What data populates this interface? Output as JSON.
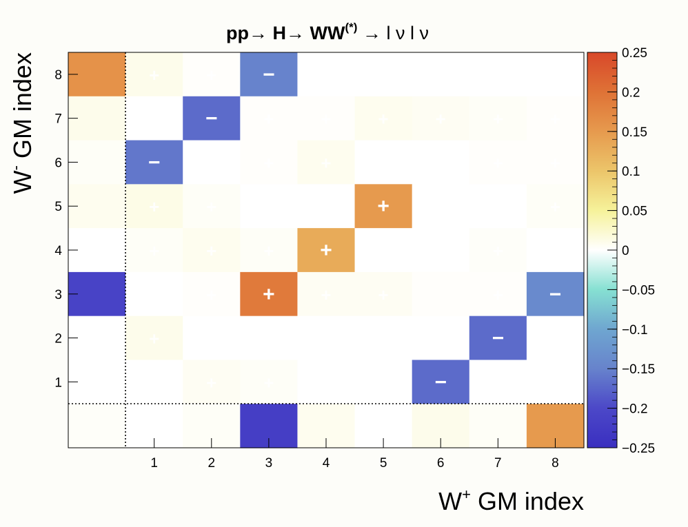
{
  "chart_data": {
    "type": "heatmap",
    "title": "pp→ H→ WW(*) → l ν l ν",
    "title_parts": {
      "pp": "pp",
      "arrow1": "→ ",
      "H": "H",
      "arrow2": "→ ",
      "WW": "WW",
      "WW_sup": "(*)",
      "tail": " → l ν l ν"
    },
    "xlabel": "W+ GM index",
    "xlabel_parts": {
      "base": "W",
      "sup": "+",
      "rest": " GM index"
    },
    "ylabel": "W- GM index",
    "ylabel_parts": {
      "base": "W",
      "sup": "-",
      "rest": " GM index"
    },
    "x_bins": [
      "",
      "1",
      "2",
      "3",
      "4",
      "5",
      "6",
      "7",
      "8"
    ],
    "y_bins": [
      "",
      "1",
      "2",
      "3",
      "4",
      "5",
      "6",
      "7",
      "8"
    ],
    "x_tick_labels": [
      "1",
      "2",
      "3",
      "4",
      "5",
      "6",
      "7",
      "8"
    ],
    "y_tick_labels": [
      "1",
      "2",
      "3",
      "4",
      "5",
      "6",
      "7",
      "8"
    ],
    "zlim": [
      -0.25,
      0.25
    ],
    "colorbar_ticks": [
      "0.25",
      "0.2",
      "0.15",
      "0.1",
      "0.05",
      "0",
      "−0.05",
      "−0.1",
      "−0.15",
      "−0.2",
      "−0.25"
    ],
    "colorbar_tick_values": [
      0.25,
      0.2,
      0.15,
      0.1,
      0.05,
      0,
      -0.05,
      -0.1,
      -0.15,
      -0.2,
      -0.25
    ],
    "rows_top_to_bottom": [
      {
        "y": "8",
        "values": [
          0.16,
          0.01,
          0.002,
          -0.15,
          0,
          0,
          0,
          0,
          0
        ]
      },
      {
        "y": "7",
        "values": [
          0.01,
          0,
          -0.17,
          0.002,
          0.002,
          0.008,
          0.006,
          0.004,
          0.002
        ]
      },
      {
        "y": "6",
        "values": [
          0.004,
          -0.16,
          0,
          0.002,
          0.008,
          0,
          0,
          0.002,
          0.002
        ]
      },
      {
        "y": "5",
        "values": [
          0.008,
          0.012,
          0.004,
          0,
          0,
          0.15,
          0,
          0,
          0.004
        ]
      },
      {
        "y": "4",
        "values": [
          0,
          0.004,
          0.008,
          0.004,
          0.13,
          0,
          0,
          0.003,
          0
        ]
      },
      {
        "y": "3",
        "values": [
          -0.21,
          0,
          0.002,
          0.19,
          0.006,
          0.006,
          0.002,
          0.002,
          -0.14
        ]
      },
      {
        "y": "2",
        "values": [
          0,
          0.01,
          0,
          0,
          0,
          0,
          0,
          -0.17,
          0
        ]
      },
      {
        "y": "1",
        "values": [
          0,
          0,
          0.006,
          0.004,
          0,
          0,
          -0.17,
          0,
          0
        ]
      },
      {
        "y": "",
        "values": [
          0.003,
          0,
          0.004,
          -0.22,
          0.008,
          0,
          0.01,
          0.004,
          0.15
        ]
      }
    ],
    "signs_top_to_bottom": [
      [
        "",
        "+",
        "+",
        "−",
        "",
        "",
        "",
        "",
        ""
      ],
      [
        "",
        "",
        "−",
        "+",
        "+",
        "+",
        "+",
        "+",
        "+"
      ],
      [
        "",
        "−",
        "",
        "+",
        "+",
        "",
        "",
        "+",
        "+"
      ],
      [
        "",
        "+",
        "+",
        "",
        "",
        "+",
        "",
        "",
        "+"
      ],
      [
        "",
        "+",
        "+",
        "+",
        "+",
        "",
        "",
        "+",
        ""
      ],
      [
        "",
        "",
        "+",
        "+",
        "+",
        "+",
        "",
        "+",
        "−"
      ],
      [
        "",
        "+",
        "",
        "",
        "",
        "",
        "",
        "−",
        ""
      ],
      [
        "",
        "",
        "+",
        "+",
        "",
        "",
        "−",
        "",
        ""
      ],
      [
        "",
        "",
        "",
        "",
        "",
        "",
        "",
        "",
        ""
      ]
    ],
    "colormap": [
      {
        "v": -0.25,
        "color": "#3a2fc0"
      },
      {
        "v": -0.2,
        "color": "#4c48c8"
      },
      {
        "v": -0.15,
        "color": "#6783cc"
      },
      {
        "v": -0.1,
        "color": "#6fa6d0"
      },
      {
        "v": -0.05,
        "color": "#86e0d2"
      },
      {
        "v": 0,
        "color": "#ffffff"
      },
      {
        "v": 0.05,
        "color": "#f6f29a"
      },
      {
        "v": 0.1,
        "color": "#ecc56a"
      },
      {
        "v": 0.15,
        "color": "#e69a4e"
      },
      {
        "v": 0.2,
        "color": "#df7236"
      },
      {
        "v": 0.25,
        "color": "#d8482a"
      }
    ]
  }
}
